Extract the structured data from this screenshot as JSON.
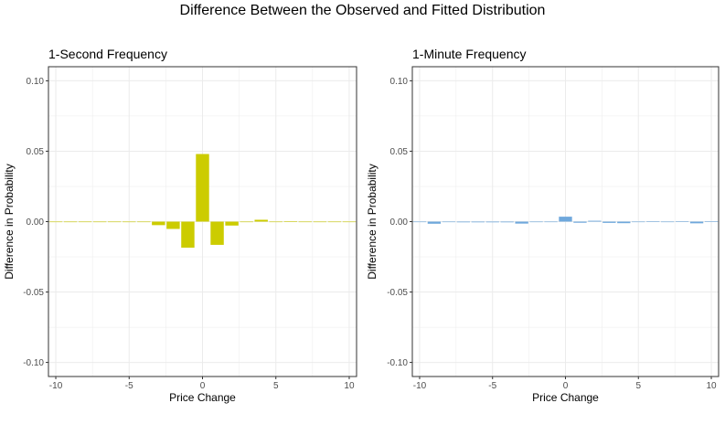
{
  "figure_title": "Difference Between the Observed and Fitted Distribution",
  "colors": {
    "panel1_bar": "#cccc00",
    "panel2_bar": "#6fa8dc",
    "grid": "#ebebeb",
    "border": "#333333"
  },
  "chart_data": [
    {
      "type": "bar",
      "title": "1-Second Frequency",
      "xlabel": "Price Change",
      "ylabel": "Difference in Probability",
      "xlim": [
        -10.5,
        10.5
      ],
      "ylim": [
        -0.11,
        0.11
      ],
      "xticks": [
        -10,
        -5,
        0,
        5,
        10
      ],
      "xtick_labels": [
        "-10",
        "-5",
        "0",
        "5",
        "10"
      ],
      "yticks": [
        0.1,
        0.05,
        0.0,
        -0.05,
        -0.1
      ],
      "ytick_labels": [
        "0.10",
        "0.05",
        "0.00",
        "-0.05",
        "-0.10"
      ],
      "x": [
        -10,
        -9,
        -8,
        -7,
        -6,
        -5,
        -4,
        -3,
        -2,
        -1,
        0,
        1,
        2,
        3,
        4,
        5,
        6,
        7,
        8,
        9,
        10
      ],
      "values": [
        -0.0003,
        -0.0004,
        -0.0003,
        -0.0004,
        -0.0002,
        -0.0004,
        -0.0003,
        -0.0025,
        -0.0052,
        -0.0185,
        0.048,
        -0.0165,
        -0.0028,
        -0.0004,
        0.0013,
        -0.0003,
        0.0003,
        -0.0003,
        -0.0004,
        -0.0003,
        -0.0003
      ]
    },
    {
      "type": "bar",
      "title": "1-Minute Frequency",
      "xlabel": "Price Change",
      "ylabel": "Difference in Probability",
      "xlim": [
        -10.5,
        10.5
      ],
      "ylim": [
        -0.11,
        0.11
      ],
      "xticks": [
        -10,
        -5,
        0,
        5,
        10
      ],
      "xtick_labels": [
        "-10",
        "-5",
        "0",
        "5",
        "10"
      ],
      "yticks": [
        0.1,
        0.05,
        0.0,
        -0.05,
        -0.1
      ],
      "ytick_labels": [
        "0.10",
        "0.05",
        "0.00",
        "-0.05",
        "-0.10"
      ],
      "x": [
        -10,
        -9,
        -8,
        -7,
        -6,
        -5,
        -4,
        -3,
        -2,
        -1,
        0,
        1,
        2,
        3,
        4,
        5,
        6,
        7,
        8,
        9,
        10
      ],
      "values": [
        -0.0003,
        -0.0015,
        -0.0004,
        -0.0005,
        -0.0005,
        -0.0005,
        -0.0005,
        -0.0014,
        -0.0004,
        -0.0002,
        0.0035,
        -0.0008,
        0.0006,
        -0.0009,
        -0.0011,
        -0.0002,
        0.0003,
        -0.0003,
        0.0002,
        -0.0012,
        0.0003
      ]
    }
  ]
}
